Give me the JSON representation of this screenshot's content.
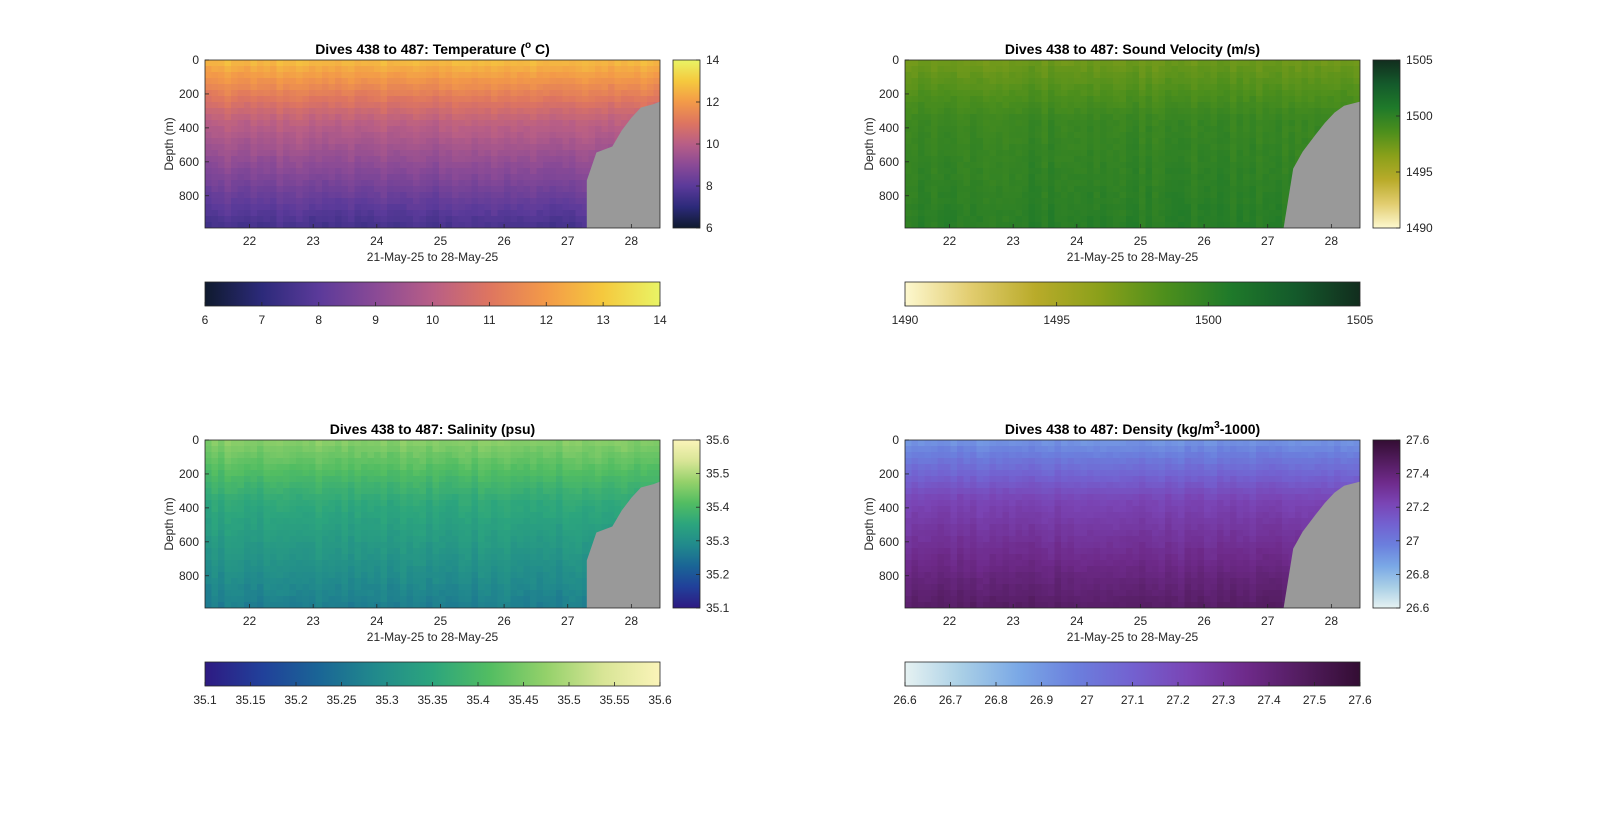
{
  "chart_data": [
    {
      "type": "heatmap",
      "title_main": "Dives 438 to 487: Temperature (",
      "title_sup": "o",
      "title_tail": " C)",
      "ylabel": "Depth (m)",
      "xlabel": "21-May-25 to 28-May-25",
      "x_ticks": [
        "22",
        "23",
        "24",
        "25",
        "26",
        "27",
        "28"
      ],
      "x_range": [
        21.3,
        28.45
      ],
      "y_ticks": [
        "0",
        "200",
        "400",
        "600",
        "800"
      ],
      "y_range": [
        0,
        990
      ],
      "colorbar_right_ticks": [
        "14",
        "12",
        "10",
        "8",
        "6"
      ],
      "colorbar_bottom_ticks": [
        "6",
        "7",
        "8",
        "9",
        "10",
        "11",
        "12",
        "13",
        "14"
      ],
      "clim": [
        6,
        14
      ],
      "colormap": [
        "#0f1a2e",
        "#2c2a7a",
        "#5b3a9a",
        "#8a4a96",
        "#b85e86",
        "#de7560",
        "#f39a48",
        "#f5c93e",
        "#e9f465"
      ],
      "profile": {
        "surface": 12.6,
        "mid": 10.2,
        "deep": 7.6
      },
      "mask_color": "#999999",
      "bottom_edge": [
        [
          27.3,
          710
        ],
        [
          27.45,
          545
        ],
        [
          27.7,
          510
        ],
        [
          27.85,
          415
        ],
        [
          28.0,
          340
        ],
        [
          28.15,
          280
        ],
        [
          28.35,
          260
        ],
        [
          28.45,
          245
        ]
      ]
    },
    {
      "type": "heatmap",
      "title_main": "Dives 438 to 487: Sound Velocity (m/s)",
      "title_sup": "",
      "title_tail": "",
      "ylabel": "Depth (m)",
      "xlabel": "21-May-25 to 28-May-25",
      "x_ticks": [
        "22",
        "23",
        "24",
        "25",
        "26",
        "27",
        "28"
      ],
      "x_range": [
        21.3,
        28.45
      ],
      "y_ticks": [
        "0",
        "200",
        "400",
        "600",
        "800"
      ],
      "y_range": [
        0,
        990
      ],
      "colorbar_right_ticks": [
        "1505",
        "1500",
        "1495",
        "1490"
      ],
      "colorbar_bottom_ticks": [
        "1490",
        "1495",
        "1500",
        "1505"
      ],
      "clim": [
        1490,
        1505
      ],
      "colormap": [
        "#fdf8cf",
        "#e2cd70",
        "#b9ab2a",
        "#8aa01a",
        "#4d8f1c",
        "#1f7a2a",
        "#145a2b",
        "#122d1e"
      ],
      "profile": {
        "surface": 1497.5,
        "mid": 1499.5,
        "deep": 1500.3
      },
      "mask_color": "#999999",
      "bottom_edge": [
        [
          27.25,
          990
        ],
        [
          27.4,
          640
        ],
        [
          27.55,
          540
        ],
        [
          27.75,
          440
        ],
        [
          27.9,
          370
        ],
        [
          28.05,
          310
        ],
        [
          28.2,
          270
        ],
        [
          28.45,
          245
        ]
      ]
    },
    {
      "type": "heatmap",
      "title_main": "Dives 438 to 487: Salinity (psu)",
      "title_sup": "",
      "title_tail": "",
      "ylabel": "Depth (m)",
      "xlabel": "21-May-25 to 28-May-25",
      "x_ticks": [
        "22",
        "23",
        "24",
        "25",
        "26",
        "27",
        "28"
      ],
      "x_range": [
        21.3,
        28.45
      ],
      "y_ticks": [
        "0",
        "200",
        "400",
        "600",
        "800"
      ],
      "y_range": [
        0,
        990
      ],
      "colorbar_right_ticks": [
        "35.6",
        "35.5",
        "35.4",
        "35.3",
        "35.2",
        "35.1"
      ],
      "colorbar_bottom_ticks": [
        "35.1",
        "35.15",
        "35.2",
        "35.25",
        "35.3",
        "35.35",
        "35.4",
        "35.45",
        "35.5",
        "35.55",
        "35.6"
      ],
      "clim": [
        35.1,
        35.6
      ],
      "colormap": [
        "#2e1a82",
        "#21409a",
        "#1a6596",
        "#218a8c",
        "#2ca57d",
        "#52bd62",
        "#94d16a",
        "#d8e596",
        "#fbf4b9"
      ],
      "profile": {
        "surface": 35.46,
        "mid": 35.36,
        "deep": 35.27
      },
      "mask_color": "#999999",
      "bottom_edge": [
        [
          27.3,
          710
        ],
        [
          27.45,
          545
        ],
        [
          27.7,
          510
        ],
        [
          27.85,
          415
        ],
        [
          28.0,
          340
        ],
        [
          28.15,
          280
        ],
        [
          28.35,
          260
        ],
        [
          28.45,
          245
        ]
      ]
    },
    {
      "type": "heatmap",
      "title_main": "Dives 438 to 487: Density (kg/m",
      "title_sup": "3",
      "title_tail": "-1000)",
      "ylabel": "Depth (m)",
      "xlabel": "21-May-25 to 28-May-25",
      "x_ticks": [
        "22",
        "23",
        "24",
        "25",
        "26",
        "27",
        "28"
      ],
      "x_range": [
        21.3,
        28.45
      ],
      "y_ticks": [
        "0",
        "200",
        "400",
        "600",
        "800"
      ],
      "y_range": [
        0,
        990
      ],
      "colorbar_right_ticks": [
        "27.6",
        "27.4",
        "27.2",
        "27",
        "26.8",
        "26.6"
      ],
      "colorbar_bottom_ticks": [
        "26.6",
        "26.7",
        "26.8",
        "26.9",
        "27",
        "27.1",
        "27.2",
        "27.3",
        "27.4",
        "27.5",
        "27.6"
      ],
      "clim": [
        26.6,
        27.6
      ],
      "colormap": [
        "#e6f2f2",
        "#a9cfe6",
        "#7aa8e6",
        "#6b7fdd",
        "#7361d0",
        "#7a44b4",
        "#6e2a8a",
        "#521c5e",
        "#330d33"
      ],
      "profile": {
        "surface": 26.92,
        "mid": 27.22,
        "deep": 27.45
      },
      "mask_color": "#999999",
      "bottom_edge": [
        [
          27.25,
          990
        ],
        [
          27.4,
          640
        ],
        [
          27.55,
          540
        ],
        [
          27.75,
          440
        ],
        [
          27.9,
          370
        ],
        [
          28.05,
          310
        ],
        [
          28.2,
          270
        ],
        [
          28.45,
          245
        ]
      ]
    }
  ]
}
